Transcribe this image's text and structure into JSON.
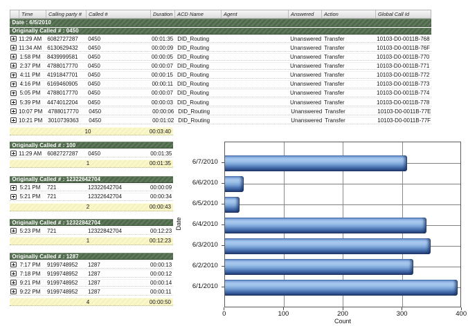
{
  "report": {
    "columns": [
      {
        "key": "expand",
        "label": ""
      },
      {
        "key": "time",
        "label": "Time"
      },
      {
        "key": "calling",
        "label": "Calling party #"
      },
      {
        "key": "called",
        "label": "Called #"
      },
      {
        "key": "duration",
        "label": "Duration"
      },
      {
        "key": "acd",
        "label": "ACD Name"
      },
      {
        "key": "agent",
        "label": "Agent"
      },
      {
        "key": "answered",
        "label": "Answered"
      },
      {
        "key": "action",
        "label": "Action"
      },
      {
        "key": "gcid",
        "label": "Global Call Id"
      }
    ],
    "date_band": "Date : 6/5/2010",
    "groups": [
      {
        "title": "Originally Called # : 0450",
        "rows": [
          {
            "time": "11:29 AM",
            "calling": "6082727287",
            "called": "0450",
            "duration": "00:01:35",
            "acd": "DID_Routing",
            "agent": "",
            "answered": "Unanswered",
            "action": "Transfer",
            "gcid": "10103-D0-0011B-768"
          },
          {
            "time": "11:34 AM",
            "calling": "6130629432",
            "called": "0450",
            "duration": "00:00:09",
            "acd": "DID_Routing",
            "agent": "",
            "answered": "Unanswered",
            "action": "Transfer",
            "gcid": "10103-D0-0011B-76F"
          },
          {
            "time": "1:58 PM",
            "calling": "8439999581",
            "called": "0450",
            "duration": "00:00:05",
            "acd": "DID_Routing",
            "agent": "",
            "answered": "Unanswered",
            "action": "Transfer",
            "gcid": "10103-D0-0011B-770"
          },
          {
            "time": "2:37 PM",
            "calling": "4788017770",
            "called": "0450",
            "duration": "00:00:07",
            "acd": "DID_Routing",
            "agent": "",
            "answered": "Unanswered",
            "action": "Transfer",
            "gcid": "10103-D0-0011B-771"
          },
          {
            "time": "4:11 PM",
            "calling": "4191847701",
            "called": "0450",
            "duration": "00:00:15",
            "acd": "DID_Routing",
            "agent": "",
            "answered": "Unanswered",
            "action": "Transfer",
            "gcid": "10103-D0-0011B-772"
          },
          {
            "time": "4:16 PM",
            "calling": "6169460905",
            "called": "0450",
            "duration": "00:00:11",
            "acd": "DID_Routing",
            "agent": "",
            "answered": "Unanswered",
            "action": "Transfer",
            "gcid": "10103-D0-0011B-773"
          },
          {
            "time": "5:05 PM",
            "calling": "4788017770",
            "called": "0450",
            "duration": "00:00:07",
            "acd": "DID_Routing",
            "agent": "",
            "answered": "Unanswered",
            "action": "Transfer",
            "gcid": "10103-D0-0011B-774"
          },
          {
            "time": "5:39 PM",
            "calling": "4474012204",
            "called": "0450",
            "duration": "00:00:03",
            "acd": "DID_Routing",
            "agent": "",
            "answered": "Unanswered",
            "action": "Transfer",
            "gcid": "10103-D0-0011B-778"
          },
          {
            "time": "10:07 PM",
            "calling": "4788017770",
            "called": "0450",
            "duration": "00:00:06",
            "acd": "DID_Routing",
            "agent": "",
            "answered": "Unanswered",
            "action": "Transfer",
            "gcid": "10103-D0-0011B-77E"
          },
          {
            "time": "10:21 PM",
            "calling": "3010739363",
            "called": "0450",
            "duration": "00:01:02",
            "acd": "DID_Routing",
            "agent": "",
            "answered": "Unanswered",
            "action": "Transfer",
            "gcid": "10103-D0-0011B-77F"
          }
        ],
        "summary": {
          "count": "10",
          "total": "00:03:40"
        }
      },
      {
        "title": "Originally Called # : 100",
        "rows": [
          {
            "time": "11:29 AM",
            "calling": "6082727287",
            "called": "0450",
            "duration": "00:01:35"
          }
        ],
        "summary": {
          "count": "1",
          "total": "00:01:35"
        }
      },
      {
        "title": "Originally Called # : 12322642704",
        "rows": [
          {
            "time": "5:21 PM",
            "calling": "721",
            "called": "12322642704",
            "duration": "00:00:09"
          },
          {
            "time": "5:21 PM",
            "calling": "721",
            "called": "12322642704",
            "duration": "00:00:34"
          }
        ],
        "summary": {
          "count": "2",
          "total": "00:00:43"
        }
      },
      {
        "title": "Originally Called # : 12322842704",
        "rows": [
          {
            "time": "5:23 PM",
            "calling": "721",
            "called": "12322842704",
            "duration": "00:12:23"
          }
        ],
        "summary": {
          "count": "1",
          "total": "00:12:23"
        }
      },
      {
        "title": "Originally Called # : 1287",
        "rows": [
          {
            "time": "7:17 PM",
            "calling": "9199748952",
            "called": "1287",
            "duration": "00:00:13"
          },
          {
            "time": "7:18 PM",
            "calling": "9199748952",
            "called": "1287",
            "duration": "00:00:12"
          },
          {
            "time": "9:21 PM",
            "calling": "9199748952",
            "called": "1287",
            "duration": "00:00:14"
          },
          {
            "time": "9:22 PM",
            "calling": "9199748952",
            "called": "1287",
            "duration": "00:00:11"
          }
        ],
        "summary": {
          "count": "4",
          "total": "00:00:50"
        }
      }
    ]
  },
  "chart_data": {
    "type": "bar",
    "orientation": "horizontal",
    "title": "",
    "categories": [
      "6/7/2010",
      "6/6/2010",
      "6/5/2010",
      "6/4/2010",
      "6/3/2010",
      "6/2/2010",
      "6/1/2010"
    ],
    "values": [
      308,
      32,
      25,
      340,
      347,
      318,
      393
    ],
    "xlabel": "Count",
    "ylabel": "Date",
    "xlim": [
      0,
      400
    ],
    "xticks": [
      0,
      100,
      200,
      300,
      400
    ],
    "grid": true,
    "legend": false,
    "bar_color_light": "#a9c9ee",
    "bar_color_dark": "#223a68"
  }
}
